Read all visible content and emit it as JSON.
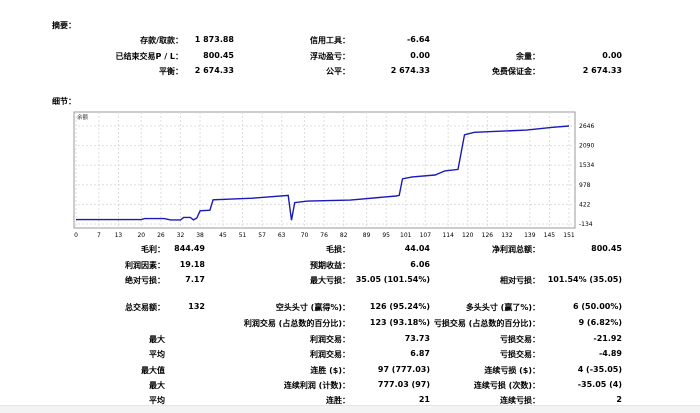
{
  "summary": {
    "title": "摘要：",
    "rows": [
      [
        {
          "label": "存款/取款：",
          "value": "1 873.88"
        },
        {
          "label": "信用工具：",
          "value": "-6.64"
        },
        {
          "label": "",
          "value": ""
        }
      ],
      [
        {
          "label": "已结束交易P / L：",
          "value": "800.45"
        },
        {
          "label": "浮动盈亏：",
          "value": "0.00"
        },
        {
          "label": "余量：",
          "value": "0.00"
        }
      ],
      [
        {
          "label": "平衡：",
          "value": "2 674.33"
        },
        {
          "label": "公平：",
          "value": "2 674.33"
        },
        {
          "label": "免费保证金：",
          "value": "2 674.33"
        }
      ]
    ]
  },
  "details": {
    "title": "细节：",
    "rows": [
      [
        {
          "label": "毛利：",
          "value": "844.49"
        },
        {
          "label": "毛损：",
          "value": "44.04"
        },
        {
          "label": "净利润总额：",
          "value": "800.45"
        }
      ],
      [
        {
          "label": "利润因素：",
          "value": "19.18"
        },
        {
          "label": "预期收益：",
          "value": "6.06"
        },
        {
          "label": "",
          "value": ""
        }
      ],
      [
        {
          "label": "绝对亏损：",
          "value": "7.17"
        },
        {
          "label": "最大亏损：",
          "value": "35.05 (101.54%)"
        },
        {
          "label": "相对亏损：",
          "value": "101.54% (35.05)"
        }
      ],
      [
        {
          "label": "总交易额：",
          "value": "132"
        },
        {
          "label": "空头头寸 (赢得%)：",
          "value": "126 (95.24%)"
        },
        {
          "label": "多头头寸 (赢了%)：",
          "value": "6 (50.00%)"
        }
      ],
      [
        {
          "label": "",
          "value": ""
        },
        {
          "label": "利润交易 (占总数的百分比)：",
          "value": "123 (93.18%)"
        },
        {
          "label": "亏损交易 (占总数的百分比)：",
          "value": "9 (6.82%)"
        }
      ],
      [
        {
          "label": "最大",
          "value": ""
        },
        {
          "label": "利润交易：",
          "value": "73.73"
        },
        {
          "label": "亏损交易：",
          "value": "-21.92"
        }
      ],
      [
        {
          "label": "平均",
          "value": ""
        },
        {
          "label": "利润交易：",
          "value": "6.87"
        },
        {
          "label": "亏损交易：",
          "value": "-4.89"
        }
      ],
      [
        {
          "label": "最大值",
          "value": ""
        },
        {
          "label": "连胜 ($)：",
          "value": "97 (777.03)"
        },
        {
          "label": "连续亏损 ($)：",
          "value": "4 (-35.05)"
        }
      ],
      [
        {
          "label": "最大",
          "value": ""
        },
        {
          "label": "连续利润 (计数)：",
          "value": "777.03 (97)"
        },
        {
          "label": "连续亏损 (次数)：",
          "value": "-35.05 (4)"
        }
      ],
      [
        {
          "label": "平均",
          "value": ""
        },
        {
          "label": "连胜：",
          "value": "21"
        },
        {
          "label": "连续亏损：",
          "value": "2"
        }
      ]
    ]
  },
  "chart_data": {
    "type": "line",
    "title": "余额",
    "xlabel": "",
    "ylabel": "",
    "x_ticks": [
      "0",
      "7",
      "13",
      "20",
      "26",
      "32",
      "38",
      "45",
      "51",
      "57",
      "63",
      "70",
      "76",
      "82",
      "89",
      "95",
      "101",
      "107",
      "114",
      "120",
      "126",
      "132",
      "139",
      "145",
      "151"
    ],
    "y_ticks": [
      "-134",
      "422",
      "978",
      "1534",
      "2090",
      "2646"
    ],
    "xlim": [
      0,
      151
    ],
    "ylim": [
      -134,
      2646
    ],
    "y_axis_side": "right",
    "grid": true,
    "color": "#1a1ab8",
    "series": [
      {
        "x": [
          0,
          20,
          21,
          27,
          29,
          32,
          33,
          35,
          36,
          37,
          38,
          41,
          42,
          54,
          65,
          66,
          67,
          71,
          84,
          98,
          99,
          100,
          103,
          110,
          113,
          117,
          119,
          122,
          138,
          146,
          151
        ],
        "y": [
          -10,
          -10,
          20,
          20,
          -18,
          -18,
          53,
          53,
          -18,
          36,
          240,
          258,
          552,
          597,
          677,
          -27,
          472,
          517,
          543,
          659,
          677,
          1149,
          1203,
          1256,
          1372,
          1416,
          2397,
          2468,
          2530,
          2610,
          2646
        ]
      }
    ]
  }
}
